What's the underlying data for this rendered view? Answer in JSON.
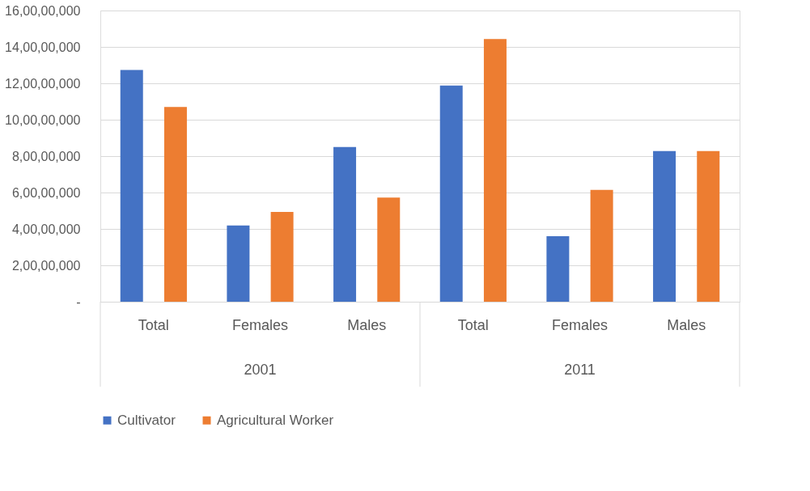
{
  "chart_data": {
    "type": "bar",
    "categories": [
      "Total",
      "Females",
      "Males",
      "Total",
      "Females",
      "Males"
    ],
    "annotations": [
      "2001",
      "2011"
    ],
    "series": [
      {
        "name": "Cultivator",
        "color": "#4472c4",
        "values": [
          127300000,
          41900000,
          85000000,
          118800000,
          36000000,
          82800000
        ]
      },
      {
        "name": "Agricultural Worker",
        "color": "#ed7d31",
        "values": [
          107000000,
          49300000,
          57200000,
          144300000,
          61400000,
          82800000
        ]
      }
    ],
    "ylim": [
      0,
      160000000
    ],
    "yticks": [
      {
        "value": 0,
        "label": "-"
      },
      {
        "value": 20000000,
        "label": "2,00,00,000"
      },
      {
        "value": 40000000,
        "label": "4,00,00,000"
      },
      {
        "value": 60000000,
        "label": "6,00,00,000"
      },
      {
        "value": 80000000,
        "label": "8,00,00,000"
      },
      {
        "value": 100000000,
        "label": "10,00,00,000"
      },
      {
        "value": 120000000,
        "label": "12,00,00,000"
      },
      {
        "value": 140000000,
        "label": "14,00,00,000"
      },
      {
        "value": 160000000,
        "label": "16,00,00,000"
      }
    ],
    "grid": "y",
    "legend": "bottom"
  }
}
